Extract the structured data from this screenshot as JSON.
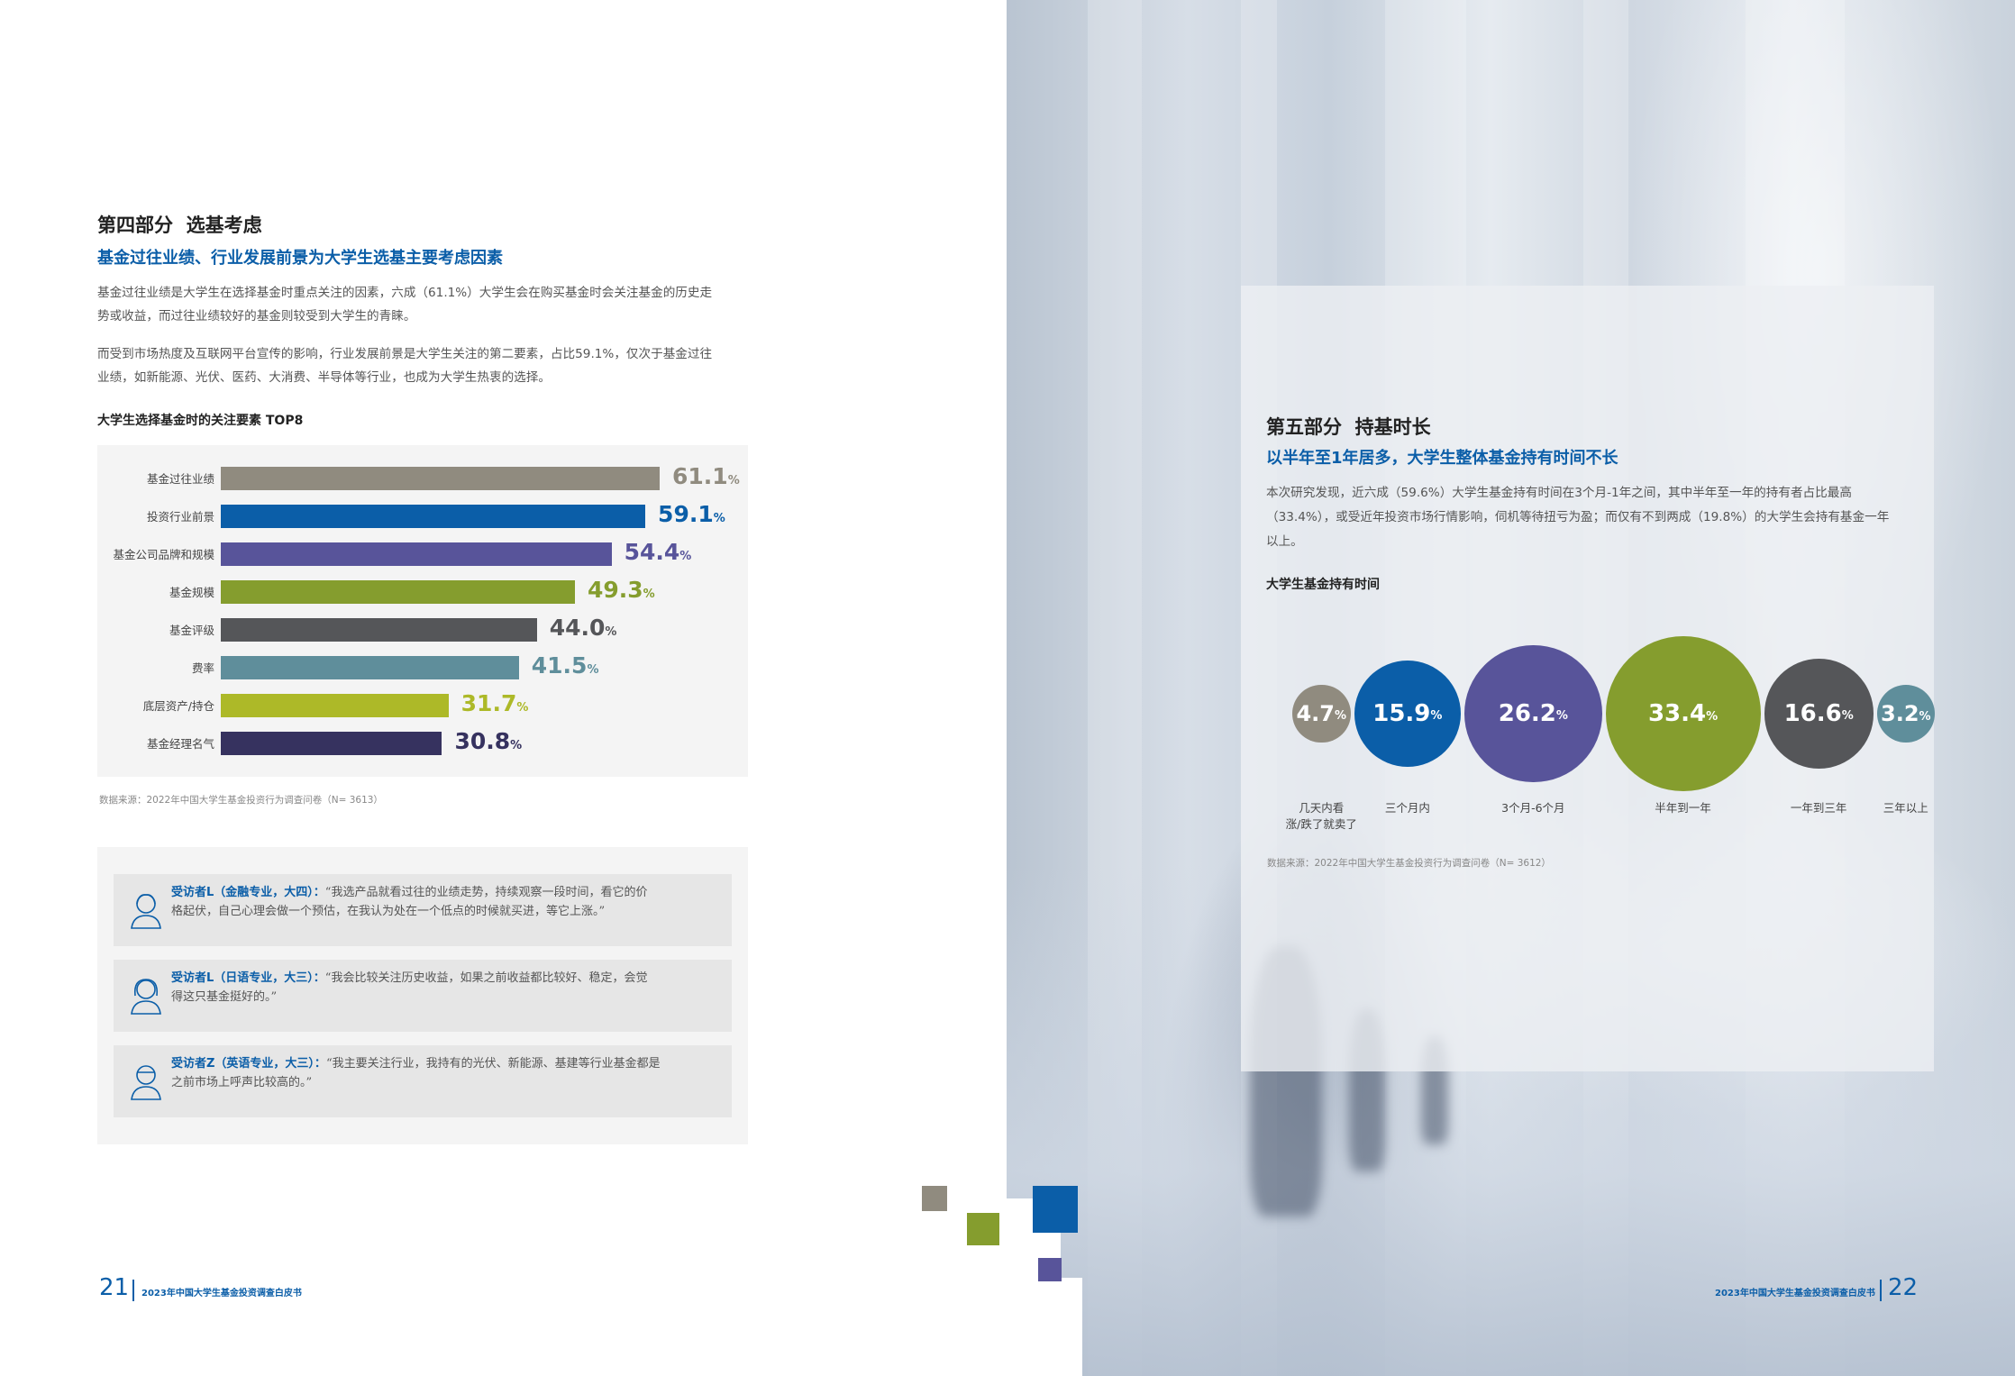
{
  "left": {
    "section_title": "第四部分  选基考虑",
    "section_subtitle": "基金过往业绩、行业发展前景为大学生选基主要考虑因素",
    "para1_line1": "基金过往业绩是大学生在选择基金时重点关注的因素，六成（61.1%）大学生会在购买基金时会关注基金的历史走",
    "para1_line2": "势或收益，而过往业绩较好的基金则较受到大学生的青睐。",
    "para2_line1": "而受到市场热度及互联网平台宣传的影响，行业发展前景是大学生关注的第二要素，占比59.1%，仅次于基金过往",
    "para2_line2": "业绩，如新能源、光伏、医药、大消费、半导体等行业，也成为大学生热衷的选择。",
    "chart_title": "大学生选择基金时的关注要素 TOP8",
    "source": "数据来源：2022年中国大学生基金投资行为调查问卷（N= 3613）",
    "quotes": [
      {
        "name": "受访者L（金融专业，大四）：",
        "line1": "“我选产品就看过往的业绩走势，持续观察一段时间，看它的价",
        "line2": "格起伏，自己心理会做一个预估，在我认为处在一个低点的时候就买进，等它上涨。”"
      },
      {
        "name": "受访者L（日语专业，大三）：",
        "line1": "“我会比较关注历史收益，如果之前收益都比较好、稳定，会觉",
        "line2": "得这只基金挺好的。”"
      },
      {
        "name": "受访者Z（英语专业，大三）：",
        "line1": "“我主要关注行业，我持有的光伏、新能源、基建等行业基金都是",
        "line2": "之前市场上呼声比较高的。”"
      }
    ],
    "page_number": "21",
    "footer": "2023年中国大学生基金投资调查白皮书"
  },
  "right": {
    "section_title": "第五部分  持基时长",
    "section_subtitle": "以半年至1年居多，大学生整体基金持有时间不长",
    "para_line1": "本次研究发现，近六成（59.6%）大学生基金持有时间在3个月-1年之间，其中半年至一年的持有者占比最高",
    "para_line2": "（33.4%），或受近年投资市场行情影响，伺机等待扭亏为盈；而仅有不到两成（19.8%）的大学生会持有基金一年",
    "para_line3": "以上。",
    "chart_title": "大学生基金持有时间",
    "source": "数据来源：2022年中国大学生基金投资行为调查问卷（N= 3612）",
    "page_number": "22",
    "footer": "2023年中国大学生基金投资调查白皮书"
  },
  "colors": {
    "gray": "#908b7f",
    "blue": "#0b5ea8",
    "purple": "#58549a",
    "olive": "#859d2e",
    "dark_gray": "#555659",
    "teal": "#5f8e9b",
    "lime": "#adb928",
    "navy": "#36325f"
  },
  "pct_unit": "%",
  "chart_data": [
    {
      "type": "bar",
      "title": "大学生选择基金时的关注要素 TOP8",
      "orientation": "horizontal",
      "unit": "%",
      "categories": [
        "基金过往业绩",
        "投资行业前景",
        "基金公司品牌和规模",
        "基金规模",
        "基金评级",
        "费率",
        "底层资产/持仓",
        "基金经理名气"
      ],
      "values": [
        61.1,
        59.1,
        54.4,
        49.3,
        44.0,
        41.5,
        31.7,
        30.8
      ],
      "value_labels": [
        "61.1",
        "59.1",
        "54.4",
        "49.3",
        "44.0",
        "41.5",
        "31.7",
        "30.8"
      ],
      "colors": [
        "#908b7f",
        "#0b5ea8",
        "#58549a",
        "#859d2e",
        "#555659",
        "#5f8e9b",
        "#adb928",
        "#36325f"
      ],
      "xlim": [
        0,
        61.1
      ]
    },
    {
      "type": "bubble",
      "title": "大学生基金持有时间",
      "unit": "%",
      "categories": [
        "几天内看涨/跌了就卖了",
        "三个月内",
        "3个月-6个月",
        "半年到一年",
        "一年到三年",
        "三年以上"
      ],
      "label_lines": [
        [
          "几天内看",
          "涨/跌了就卖了"
        ],
        [
          "三个月内"
        ],
        [
          "3个月-6个月"
        ],
        [
          "半年到一年"
        ],
        [
          "一年到三年"
        ],
        [
          "三年以上"
        ]
      ],
      "values": [
        4.7,
        15.9,
        26.2,
        33.4,
        16.6,
        3.2
      ],
      "value_labels": [
        "4.7",
        "15.9",
        "26.2",
        "33.4",
        "16.6",
        "3.2"
      ],
      "colors": [
        "#908b7f",
        "#0b5ea8",
        "#58549a",
        "#859d2e",
        "#555659",
        "#5f8e9b"
      ]
    }
  ]
}
